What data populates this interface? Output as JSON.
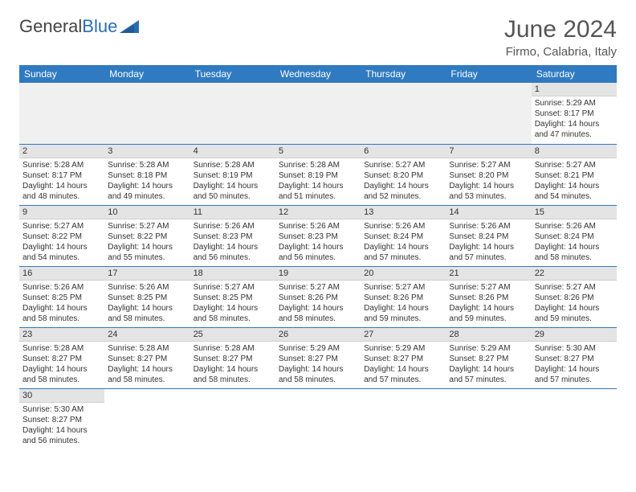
{
  "brand": {
    "part1": "General",
    "part2": "Blue"
  },
  "title": "June 2024",
  "subtitle": "Firmo, Calabria, Italy",
  "colors": {
    "header_bg": "#2f7ac0",
    "header_fg": "#ffffff",
    "daynum_bg": "#e4e4e4",
    "border": "#2f7ac0"
  },
  "day_headers": [
    "Sunday",
    "Monday",
    "Tuesday",
    "Wednesday",
    "Thursday",
    "Friday",
    "Saturday"
  ],
  "weeks": [
    [
      null,
      null,
      null,
      null,
      null,
      null,
      {
        "n": "1",
        "l1": "Sunrise: 5:29 AM",
        "l2": "Sunset: 8:17 PM",
        "l3": "Daylight: 14 hours",
        "l4": "and 47 minutes."
      }
    ],
    [
      {
        "n": "2",
        "l1": "Sunrise: 5:28 AM",
        "l2": "Sunset: 8:17 PM",
        "l3": "Daylight: 14 hours",
        "l4": "and 48 minutes."
      },
      {
        "n": "3",
        "l1": "Sunrise: 5:28 AM",
        "l2": "Sunset: 8:18 PM",
        "l3": "Daylight: 14 hours",
        "l4": "and 49 minutes."
      },
      {
        "n": "4",
        "l1": "Sunrise: 5:28 AM",
        "l2": "Sunset: 8:19 PM",
        "l3": "Daylight: 14 hours",
        "l4": "and 50 minutes."
      },
      {
        "n": "5",
        "l1": "Sunrise: 5:28 AM",
        "l2": "Sunset: 8:19 PM",
        "l3": "Daylight: 14 hours",
        "l4": "and 51 minutes."
      },
      {
        "n": "6",
        "l1": "Sunrise: 5:27 AM",
        "l2": "Sunset: 8:20 PM",
        "l3": "Daylight: 14 hours",
        "l4": "and 52 minutes."
      },
      {
        "n": "7",
        "l1": "Sunrise: 5:27 AM",
        "l2": "Sunset: 8:20 PM",
        "l3": "Daylight: 14 hours",
        "l4": "and 53 minutes."
      },
      {
        "n": "8",
        "l1": "Sunrise: 5:27 AM",
        "l2": "Sunset: 8:21 PM",
        "l3": "Daylight: 14 hours",
        "l4": "and 54 minutes."
      }
    ],
    [
      {
        "n": "9",
        "l1": "Sunrise: 5:27 AM",
        "l2": "Sunset: 8:22 PM",
        "l3": "Daylight: 14 hours",
        "l4": "and 54 minutes."
      },
      {
        "n": "10",
        "l1": "Sunrise: 5:27 AM",
        "l2": "Sunset: 8:22 PM",
        "l3": "Daylight: 14 hours",
        "l4": "and 55 minutes."
      },
      {
        "n": "11",
        "l1": "Sunrise: 5:26 AM",
        "l2": "Sunset: 8:23 PM",
        "l3": "Daylight: 14 hours",
        "l4": "and 56 minutes."
      },
      {
        "n": "12",
        "l1": "Sunrise: 5:26 AM",
        "l2": "Sunset: 8:23 PM",
        "l3": "Daylight: 14 hours",
        "l4": "and 56 minutes."
      },
      {
        "n": "13",
        "l1": "Sunrise: 5:26 AM",
        "l2": "Sunset: 8:24 PM",
        "l3": "Daylight: 14 hours",
        "l4": "and 57 minutes."
      },
      {
        "n": "14",
        "l1": "Sunrise: 5:26 AM",
        "l2": "Sunset: 8:24 PM",
        "l3": "Daylight: 14 hours",
        "l4": "and 57 minutes."
      },
      {
        "n": "15",
        "l1": "Sunrise: 5:26 AM",
        "l2": "Sunset: 8:24 PM",
        "l3": "Daylight: 14 hours",
        "l4": "and 58 minutes."
      }
    ],
    [
      {
        "n": "16",
        "l1": "Sunrise: 5:26 AM",
        "l2": "Sunset: 8:25 PM",
        "l3": "Daylight: 14 hours",
        "l4": "and 58 minutes."
      },
      {
        "n": "17",
        "l1": "Sunrise: 5:26 AM",
        "l2": "Sunset: 8:25 PM",
        "l3": "Daylight: 14 hours",
        "l4": "and 58 minutes."
      },
      {
        "n": "18",
        "l1": "Sunrise: 5:27 AM",
        "l2": "Sunset: 8:25 PM",
        "l3": "Daylight: 14 hours",
        "l4": "and 58 minutes."
      },
      {
        "n": "19",
        "l1": "Sunrise: 5:27 AM",
        "l2": "Sunset: 8:26 PM",
        "l3": "Daylight: 14 hours",
        "l4": "and 58 minutes."
      },
      {
        "n": "20",
        "l1": "Sunrise: 5:27 AM",
        "l2": "Sunset: 8:26 PM",
        "l3": "Daylight: 14 hours",
        "l4": "and 59 minutes."
      },
      {
        "n": "21",
        "l1": "Sunrise: 5:27 AM",
        "l2": "Sunset: 8:26 PM",
        "l3": "Daylight: 14 hours",
        "l4": "and 59 minutes."
      },
      {
        "n": "22",
        "l1": "Sunrise: 5:27 AM",
        "l2": "Sunset: 8:26 PM",
        "l3": "Daylight: 14 hours",
        "l4": "and 59 minutes."
      }
    ],
    [
      {
        "n": "23",
        "l1": "Sunrise: 5:28 AM",
        "l2": "Sunset: 8:27 PM",
        "l3": "Daylight: 14 hours",
        "l4": "and 58 minutes."
      },
      {
        "n": "24",
        "l1": "Sunrise: 5:28 AM",
        "l2": "Sunset: 8:27 PM",
        "l3": "Daylight: 14 hours",
        "l4": "and 58 minutes."
      },
      {
        "n": "25",
        "l1": "Sunrise: 5:28 AM",
        "l2": "Sunset: 8:27 PM",
        "l3": "Daylight: 14 hours",
        "l4": "and 58 minutes."
      },
      {
        "n": "26",
        "l1": "Sunrise: 5:29 AM",
        "l2": "Sunset: 8:27 PM",
        "l3": "Daylight: 14 hours",
        "l4": "and 58 minutes."
      },
      {
        "n": "27",
        "l1": "Sunrise: 5:29 AM",
        "l2": "Sunset: 8:27 PM",
        "l3": "Daylight: 14 hours",
        "l4": "and 57 minutes."
      },
      {
        "n": "28",
        "l1": "Sunrise: 5:29 AM",
        "l2": "Sunset: 8:27 PM",
        "l3": "Daylight: 14 hours",
        "l4": "and 57 minutes."
      },
      {
        "n": "29",
        "l1": "Sunrise: 5:30 AM",
        "l2": "Sunset: 8:27 PM",
        "l3": "Daylight: 14 hours",
        "l4": "and 57 minutes."
      }
    ],
    [
      {
        "n": "30",
        "l1": "Sunrise: 5:30 AM",
        "l2": "Sunset: 8:27 PM",
        "l3": "Daylight: 14 hours",
        "l4": "and 56 minutes."
      },
      null,
      null,
      null,
      null,
      null,
      null
    ]
  ]
}
